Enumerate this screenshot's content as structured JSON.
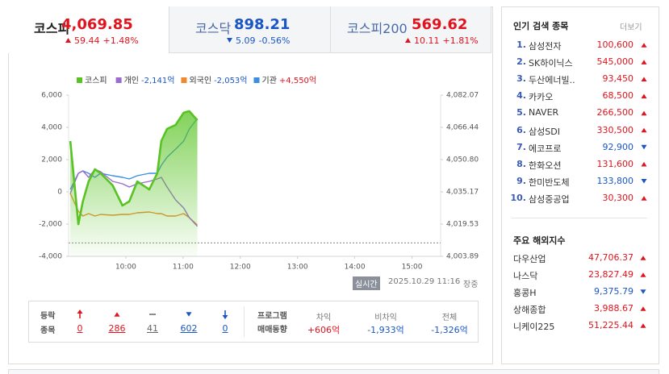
{
  "tabs": [
    {
      "name": "코스피",
      "value": "4,069.85",
      "change": "59.44",
      "rate": "+1.48%",
      "direction": "up",
      "active": true
    },
    {
      "name": "코스닥",
      "value": "898.21",
      "change": "5.09",
      "rate": "-0.56%",
      "direction": "down",
      "active": false
    },
    {
      "name": "코스피200",
      "value": "569.62",
      "change": "10.11",
      "rate": "+1.81%",
      "direction": "up",
      "active": false
    }
  ],
  "chart_data": {
    "type": "line",
    "x": [
      9.03,
      9.17,
      9.25,
      9.35,
      9.46,
      9.56,
      9.77,
      9.94,
      10.06,
      10.2,
      10.41,
      10.55,
      10.62,
      10.72,
      10.87,
      11.01,
      11.11,
      11.25
    ],
    "xlim": [
      9,
      15.5
    ],
    "xticks": [
      {
        "value": 10,
        "label": "10:00"
      },
      {
        "value": 11,
        "label": "11:00"
      },
      {
        "value": 12,
        "label": "12:00"
      },
      {
        "value": 13,
        "label": "13:00"
      },
      {
        "value": 14,
        "label": "14:00"
      },
      {
        "value": 15,
        "label": "15:00"
      }
    ],
    "ylim": [
      -4000,
      6000
    ],
    "yticks": [
      {
        "value": -4000,
        "label": "-4,000"
      },
      {
        "value": -2000,
        "label": "-2,000"
      },
      0,
      {
        "value": 2000,
        "label": "2,000"
      },
      {
        "value": 4000,
        "label": "4,000"
      },
      {
        "value": 6000,
        "label": "6,000"
      }
    ],
    "y2lim": [
      4003.89,
      4082.07
    ],
    "y2ticks": [
      {
        "value": 4003.89,
        "label": "4,003.89"
      },
      {
        "value": 4019.53,
        "label": "4,019.53"
      },
      {
        "value": 4035.17,
        "label": "4,035.17"
      },
      {
        "value": 4050.8,
        "label": "4,050.80"
      },
      {
        "value": 4066.44,
        "label": "4,066.44"
      },
      {
        "value": 4082.07,
        "label": "4,082.07"
      }
    ],
    "reference_line": {
      "value": 4010.41,
      "axis": "y2"
    },
    "series": [
      {
        "name": "코스피",
        "color": "#58c322",
        "axis": "y2",
        "area": true,
        "values": [
          4059.8,
          4019.5,
          4030.5,
          4040.2,
          4046.1,
          4044.2,
          4038.3,
          4028.5,
          4030.5,
          4040.2,
          4036.3,
          4044.2,
          4059.8,
          4065.7,
          4067.6,
          4073.5,
          4074.3,
          4069.85
        ]
      },
      {
        "name": "개인",
        "legend_value": "-2,141억",
        "color": "#9b6bd1",
        "values": [
          -100,
          1150,
          1300,
          900,
          1400,
          1250,
          650,
          500,
          300,
          500,
          650,
          800,
          900,
          300,
          -500,
          -1000,
          -1600,
          -2141
        ]
      },
      {
        "name": "외국인",
        "legend_value": "-2,053억",
        "color": "#ee8a2b",
        "values": [
          -100,
          -1200,
          -1500,
          -1350,
          -1500,
          -1400,
          -1450,
          -1400,
          -1400,
          -1300,
          -1250,
          -1350,
          -1350,
          -1500,
          -1500,
          -1350,
          -1600,
          -2053
        ]
      },
      {
        "name": "기관",
        "legend_value": "+4,550억",
        "color": "#3b8fe0",
        "values": [
          150,
          1150,
          1300,
          1150,
          900,
          1150,
          1000,
          900,
          800,
          1000,
          1150,
          1150,
          1650,
          2150,
          2650,
          3150,
          3900,
          4550
        ]
      }
    ]
  },
  "timestamp": {
    "badge": "실시간",
    "datetime": "2025.10.29 11:16",
    "status": "장중"
  },
  "breadth": {
    "label": [
      "등락",
      "종목"
    ],
    "items": [
      {
        "kind": "limit-up",
        "value": "0"
      },
      {
        "kind": "up",
        "value": "286"
      },
      {
        "kind": "flat",
        "value": "41"
      },
      {
        "kind": "down",
        "value": "602"
      },
      {
        "kind": "limit-down",
        "value": "0"
      }
    ]
  },
  "program": {
    "label": [
      "프로그램",
      "매매동향"
    ],
    "columns": [
      {
        "header": "차익",
        "value": "+606억"
      },
      {
        "header": "비차익",
        "value": "-1,933억"
      },
      {
        "header": "전체",
        "value": "-1,326억"
      }
    ]
  },
  "popular": {
    "title": "인기 검색 종목",
    "more": "더보기",
    "rows": [
      {
        "rank": "1.",
        "name": "삼성전자",
        "price": "100,600",
        "direction": "up"
      },
      {
        "rank": "2.",
        "name": "SK하이닉스",
        "price": "545,000",
        "direction": "up"
      },
      {
        "rank": "3.",
        "name": "두산에너빌..",
        "price": "93,450",
        "direction": "up"
      },
      {
        "rank": "4.",
        "name": "카카오",
        "price": "68,500",
        "direction": "up"
      },
      {
        "rank": "5.",
        "name": "NAVER",
        "price": "266,500",
        "direction": "up"
      },
      {
        "rank": "6.",
        "name": "삼성SDI",
        "price": "330,500",
        "direction": "up"
      },
      {
        "rank": "7.",
        "name": "에코프로",
        "price": "92,900",
        "direction": "down"
      },
      {
        "rank": "8.",
        "name": "한화오션",
        "price": "131,600",
        "direction": "up"
      },
      {
        "rank": "9.",
        "name": "한미반도체",
        "price": "133,800",
        "direction": "down"
      },
      {
        "rank": "10.",
        "name": "삼성중공업",
        "price": "30,300",
        "direction": "up"
      }
    ]
  },
  "overseas": {
    "title": "주요 해외지수",
    "rows": [
      {
        "name": "다우산업",
        "value": "47,706.37",
        "direction": "up"
      },
      {
        "name": "나스닥",
        "value": "23,827.49",
        "direction": "up"
      },
      {
        "name": "홍콩H",
        "value": "9,375.79",
        "direction": "down"
      },
      {
        "name": "상해종합",
        "value": "3,988.67",
        "direction": "up"
      },
      {
        "name": "니케이225",
        "value": "51,225.44",
        "direction": "up"
      }
    ]
  }
}
